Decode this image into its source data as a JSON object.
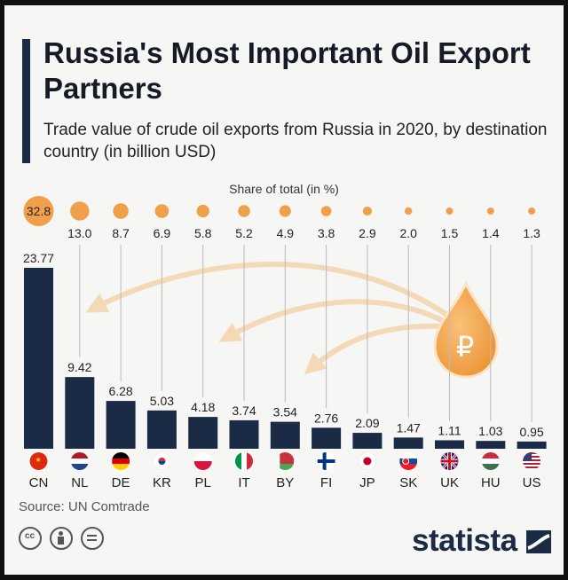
{
  "title": "Russia's Most Important Oil Export Partners",
  "subtitle": "Trade value of crude oil exports from Russia in 2020, by destination country (in billion USD)",
  "share_heading": "Share of total (in %)",
  "source": "Source: UN Comtrade",
  "brand": "statista",
  "icons": {
    "oil_drop": "oil-drop-ruble-icon",
    "license": [
      "cc-icon",
      "attribution-icon",
      "no-derivatives-icon"
    ]
  },
  "colors": {
    "bar": "#1c2b45",
    "accent": "#f0a04b",
    "arrow": "#f3d9b6",
    "background": "#f6f6f4"
  },
  "chart_data": {
    "type": "bar",
    "title": "Russia's Most Important Oil Export Partners",
    "categories": [
      "CN",
      "NL",
      "DE",
      "KR",
      "PL",
      "IT",
      "BY",
      "FI",
      "JP",
      "SK",
      "UK",
      "HU",
      "US"
    ],
    "values": [
      23.77,
      9.42,
      6.28,
      5.03,
      4.18,
      3.74,
      3.54,
      2.76,
      2.09,
      1.47,
      1.11,
      1.03,
      0.95
    ],
    "value_labels": [
      "23.77",
      "9.42",
      "6.28",
      "5.03",
      "4.18",
      "3.74",
      "3.54",
      "2.76",
      "2.09",
      "1.47",
      "1.11",
      "1.03",
      "0.95"
    ],
    "share_of_total": [
      32.8,
      13.0,
      8.7,
      6.9,
      5.8,
      5.2,
      4.9,
      3.8,
      2.9,
      2.0,
      1.5,
      1.4,
      1.3
    ],
    "share_labels": [
      "32.8",
      "13.0",
      "8.7",
      "6.9",
      "5.8",
      "5.2",
      "4.9",
      "3.8",
      "2.9",
      "2.0",
      "1.5",
      "1.4",
      "1.3"
    ],
    "ylim": [
      0,
      23.77
    ],
    "grid": false
  }
}
